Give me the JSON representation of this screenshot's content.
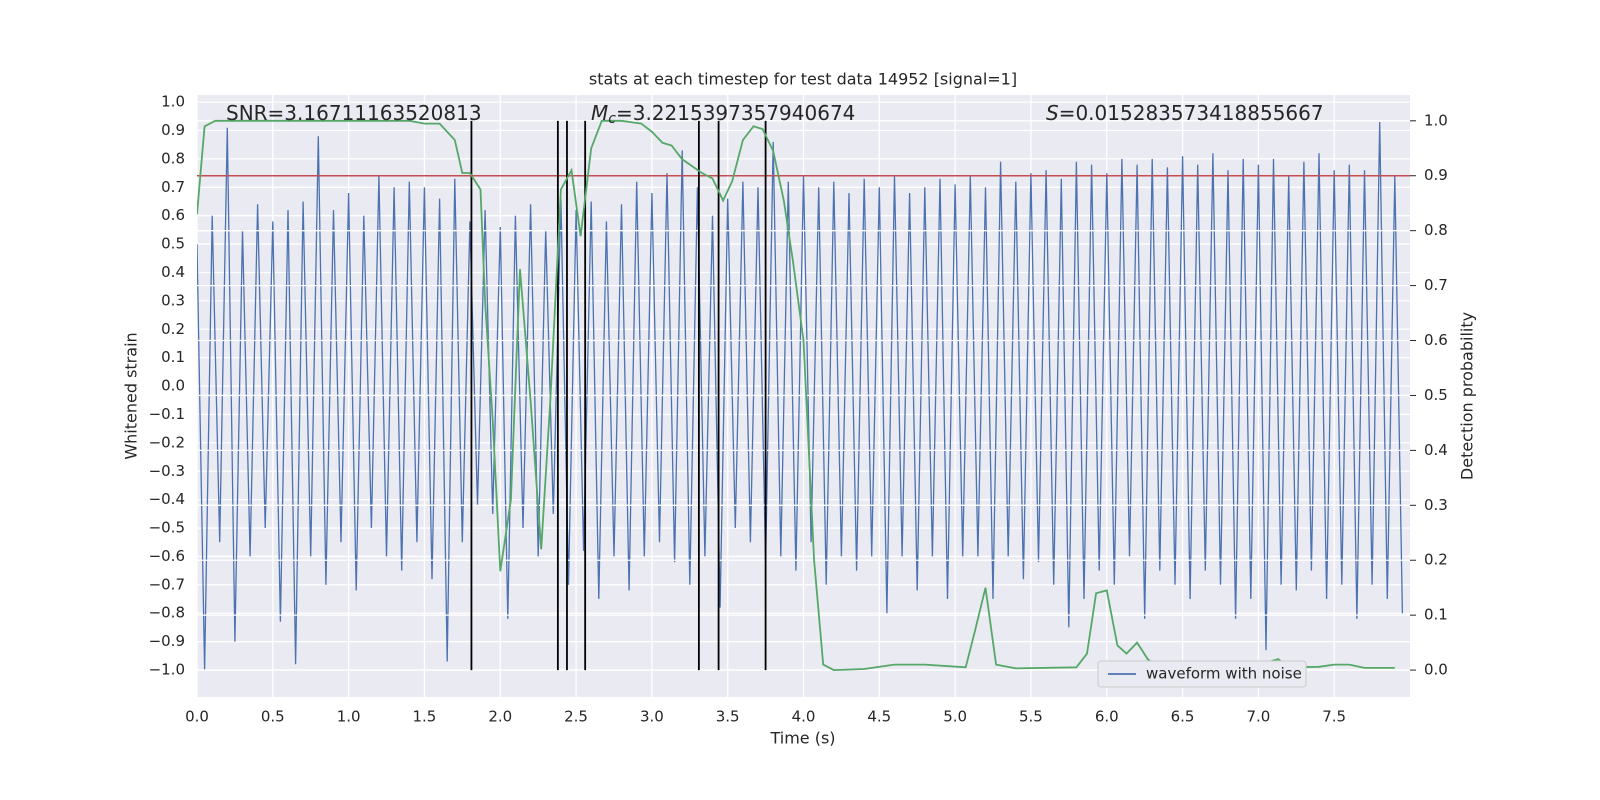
{
  "chart_data": {
    "type": "line",
    "title": "stats at each timestep for test data 14952 [signal=1]",
    "xlabel": "Time (s)",
    "ylabel": "Whitened strain",
    "y2label": "Detection probability",
    "xlim": [
      0,
      8
    ],
    "ylim": [
      -1.095,
      1.025
    ],
    "y2lim": [
      -0.049,
      1.047
    ],
    "xticks": [
      {
        "value": 0,
        "label": "0.0"
      },
      {
        "value": 0.5,
        "label": "0.5"
      },
      {
        "value": 1,
        "label": "1.0"
      },
      {
        "value": 1.5,
        "label": "1.5"
      },
      {
        "value": 2,
        "label": "2.0"
      },
      {
        "value": 2.5,
        "label": "2.5"
      },
      {
        "value": 3,
        "label": "3.0"
      },
      {
        "value": 3.5,
        "label": "3.5"
      },
      {
        "value": 4,
        "label": "4.0"
      },
      {
        "value": 4.5,
        "label": "4.5"
      },
      {
        "value": 5,
        "label": "5.0"
      },
      {
        "value": 5.5,
        "label": "5.5"
      },
      {
        "value": 6,
        "label": "6.0"
      },
      {
        "value": 6.5,
        "label": "6.5"
      },
      {
        "value": 7,
        "label": "7.0"
      },
      {
        "value": 7.5,
        "label": "7.5"
      }
    ],
    "yticks": [
      {
        "value": -1,
        "label": "−1.0"
      },
      {
        "value": -0.9,
        "label": "−0.9"
      },
      {
        "value": -0.8,
        "label": "−0.8"
      },
      {
        "value": -0.7,
        "label": "−0.7"
      },
      {
        "value": -0.6,
        "label": "−0.6"
      },
      {
        "value": -0.5,
        "label": "−0.5"
      },
      {
        "value": -0.4,
        "label": "−0.4"
      },
      {
        "value": -0.3,
        "label": "−0.3"
      },
      {
        "value": -0.2,
        "label": "−0.2"
      },
      {
        "value": -0.1,
        "label": "−0.1"
      },
      {
        "value": 0,
        "label": "0.0"
      },
      {
        "value": 0.1,
        "label": "0.1"
      },
      {
        "value": 0.2,
        "label": "0.2"
      },
      {
        "value": 0.3,
        "label": "0.3"
      },
      {
        "value": 0.4,
        "label": "0.4"
      },
      {
        "value": 0.5,
        "label": "0.5"
      },
      {
        "value": 0.6,
        "label": "0.6"
      },
      {
        "value": 0.7,
        "label": "0.7"
      },
      {
        "value": 0.8,
        "label": "0.8"
      },
      {
        "value": 0.9,
        "label": "0.9"
      },
      {
        "value": 1,
        "label": "1.0"
      }
    ],
    "y2ticks": [
      {
        "value": 0,
        "label": "0.0"
      },
      {
        "value": 0.1,
        "label": "0.1"
      },
      {
        "value": 0.2,
        "label": "0.2"
      },
      {
        "value": 0.3,
        "label": "0.3"
      },
      {
        "value": 0.4,
        "label": "0.4"
      },
      {
        "value": 0.5,
        "label": "0.5"
      },
      {
        "value": 0.6,
        "label": "0.6"
      },
      {
        "value": 0.7,
        "label": "0.7"
      },
      {
        "value": 0.8,
        "label": "0.8"
      },
      {
        "value": 0.9,
        "label": "0.9"
      },
      {
        "value": 1,
        "label": "1.0"
      }
    ],
    "grid": true,
    "legend": "lower right",
    "annotations": [
      {
        "text": "SNR=3.16711163520813"
      },
      {
        "symbol": "M",
        "subscript": "c",
        "text": "=3.2215397357940674"
      },
      {
        "symbol": "S",
        "text": "=0.015283573418855667"
      }
    ],
    "series": [
      {
        "name": "waveform with noise",
        "color": "#4c72b0",
        "x": [
          0,
          0.05,
          0.1,
          0.15,
          0.2,
          0.25,
          0.3,
          0.35,
          0.4,
          0.45,
          0.5,
          0.55,
          0.6,
          0.65,
          0.7,
          0.75,
          0.8,
          0.85,
          0.9,
          0.95,
          1,
          1.05,
          1.1,
          1.15,
          1.2,
          1.25,
          1.3,
          1.35,
          1.4,
          1.45,
          1.5,
          1.55,
          1.6,
          1.65,
          1.7,
          1.75,
          1.8,
          1.85,
          1.9,
          1.95,
          2,
          2.05,
          2.1,
          2.15,
          2.2,
          2.25,
          2.3,
          2.35,
          2.4,
          2.45,
          2.5,
          2.55,
          2.6,
          2.65,
          2.7,
          2.75,
          2.8,
          2.85,
          2.9,
          2.95,
          3,
          3.05,
          3.1,
          3.15,
          3.2,
          3.25,
          3.3,
          3.35,
          3.4,
          3.45,
          3.5,
          3.55,
          3.6,
          3.65,
          3.7,
          3.75,
          3.8,
          3.85,
          3.9,
          3.95,
          4,
          4.05,
          4.1,
          4.15,
          4.2,
          4.25,
          4.3,
          4.35,
          4.4,
          4.45,
          4.5,
          4.55,
          4.6,
          4.65,
          4.7,
          4.75,
          4.8,
          4.85,
          4.9,
          4.95,
          5,
          5.05,
          5.1,
          5.15,
          5.2,
          5.25,
          5.3,
          5.35,
          5.4,
          5.45,
          5.5,
          5.55,
          5.6,
          5.65,
          5.7,
          5.75,
          5.8,
          5.85,
          5.9,
          5.95,
          6,
          6.05,
          6.1,
          6.15,
          6.2,
          6.25,
          6.3,
          6.35,
          6.4,
          6.45,
          6.5,
          6.55,
          6.6,
          6.65,
          6.7,
          6.75,
          6.8,
          6.85,
          6.9,
          6.95,
          7,
          7.05,
          7.1,
          7.15,
          7.2,
          7.25,
          7.3,
          7.35,
          7.4,
          7.45,
          7.5,
          7.55,
          7.6,
          7.65,
          7.7,
          7.75,
          7.8,
          7.85,
          7.9,
          7.95
        ],
        "values": [
          0.5,
          -1.0,
          0.6,
          -0.55,
          0.91,
          -0.9,
          0.55,
          -0.6,
          0.64,
          -0.5,
          0.58,
          -0.83,
          0.62,
          -0.98,
          0.65,
          -0.6,
          0.88,
          -0.7,
          0.62,
          -0.55,
          0.68,
          -0.72,
          0.6,
          -0.5,
          0.74,
          -0.6,
          0.7,
          -0.65,
          0.72,
          -0.55,
          0.7,
          -0.68,
          0.66,
          -0.97,
          0.73,
          -0.55,
          0.58,
          -0.42,
          0.62,
          -0.45,
          0.56,
          -0.82,
          0.6,
          -0.5,
          0.64,
          -0.6,
          0.55,
          -0.45,
          0.66,
          -0.7,
          0.62,
          -0.58,
          0.65,
          -0.75,
          0.58,
          -0.6,
          0.64,
          -0.72,
          0.72,
          -0.6,
          0.68,
          -0.55,
          0.75,
          -0.62,
          0.83,
          -0.7,
          0.7,
          -0.6,
          0.6,
          -0.78,
          0.66,
          -0.5,
          0.72,
          -0.55,
          0.7,
          -0.62,
          0.86,
          -0.6,
          0.72,
          -0.65,
          0.74,
          -0.55,
          0.7,
          -0.7,
          0.72,
          -0.6,
          0.68,
          -0.65,
          0.73,
          -0.6,
          0.7,
          -0.8,
          0.74,
          -0.6,
          0.68,
          -0.72,
          0.7,
          -0.6,
          0.73,
          -0.75,
          0.71,
          -0.6,
          0.74,
          -0.6,
          0.7,
          -0.75,
          0.79,
          -0.6,
          0.72,
          -0.68,
          0.75,
          -0.62,
          0.76,
          -0.7,
          0.73,
          -0.85,
          0.79,
          -0.75,
          0.78,
          -0.65,
          0.75,
          -0.7,
          0.8,
          -0.6,
          0.78,
          -0.82,
          0.8,
          -0.65,
          0.77,
          -0.7,
          0.81,
          -0.75,
          0.78,
          -0.65,
          0.82,
          -0.7,
          0.76,
          -0.82,
          0.8,
          -0.75,
          0.78,
          -0.93,
          0.8,
          -0.7,
          0.74,
          -0.72,
          0.79,
          -0.65,
          0.82,
          -0.75,
          0.76,
          -0.7,
          0.78,
          -0.82,
          0.76,
          -0.7,
          0.93,
          -0.75,
          0.74,
          -0.8
        ]
      },
      {
        "color": "#55a868",
        "axis": "y2",
        "x": [
          0,
          0.05,
          0.12,
          0.5,
          1,
          1.4,
          1.5,
          1.6,
          1.7,
          1.75,
          1.8,
          1.87,
          1.9,
          1.95,
          2,
          2.07,
          2.13,
          2.2,
          2.27,
          2.33,
          2.4,
          2.47,
          2.53,
          2.6,
          2.67,
          2.8,
          2.93,
          3,
          3.07,
          3.13,
          3.2,
          3.33,
          3.4,
          3.47,
          3.53,
          3.6,
          3.67,
          3.73,
          3.8,
          3.87,
          3.93,
          4,
          4.07,
          4.13,
          4.2,
          4.4,
          4.6,
          4.8,
          5.07,
          5.13,
          5.2,
          5.27,
          5.4,
          5.8,
          5.87,
          5.93,
          6,
          6.07,
          6.13,
          6.2,
          6.27,
          6.33,
          6.5,
          7,
          7.07,
          7.13,
          7.2,
          7.4,
          7.5,
          7.6,
          7.7,
          7.9
        ],
        "values": [
          0.83,
          0.99,
          1.0,
          1.0,
          1.0,
          1.0,
          0.995,
          0.995,
          0.965,
          0.905,
          0.905,
          0.875,
          0.67,
          0.455,
          0.18,
          0.31,
          0.73,
          0.49,
          0.22,
          0.49,
          0.875,
          0.91,
          0.79,
          0.95,
          1.0,
          1.0,
          0.995,
          0.98,
          0.96,
          0.955,
          0.93,
          0.905,
          0.895,
          0.855,
          0.89,
          0.965,
          0.99,
          0.985,
          0.945,
          0.855,
          0.745,
          0.6,
          0.2,
          0.01,
          0.0,
          0.002,
          0.01,
          0.01,
          0.005,
          0.07,
          0.15,
          0.01,
          0.003,
          0.005,
          0.03,
          0.14,
          0.145,
          0.045,
          0.03,
          0.05,
          0.02,
          0.005,
          0.003,
          0.004,
          0.015,
          0.02,
          0.005,
          0.006,
          0.01,
          0.01,
          0.004,
          0.004
        ]
      }
    ],
    "hlines": [
      {
        "value": 0.9,
        "axis": "y2",
        "color": "#c44e52"
      }
    ],
    "vlines": {
      "x": [
        1.81,
        2.38,
        2.44,
        2.56,
        3.31,
        3.44,
        3.75
      ],
      "ymin": 0,
      "ymax": 1,
      "axis": "y2",
      "color": "#000000"
    }
  }
}
